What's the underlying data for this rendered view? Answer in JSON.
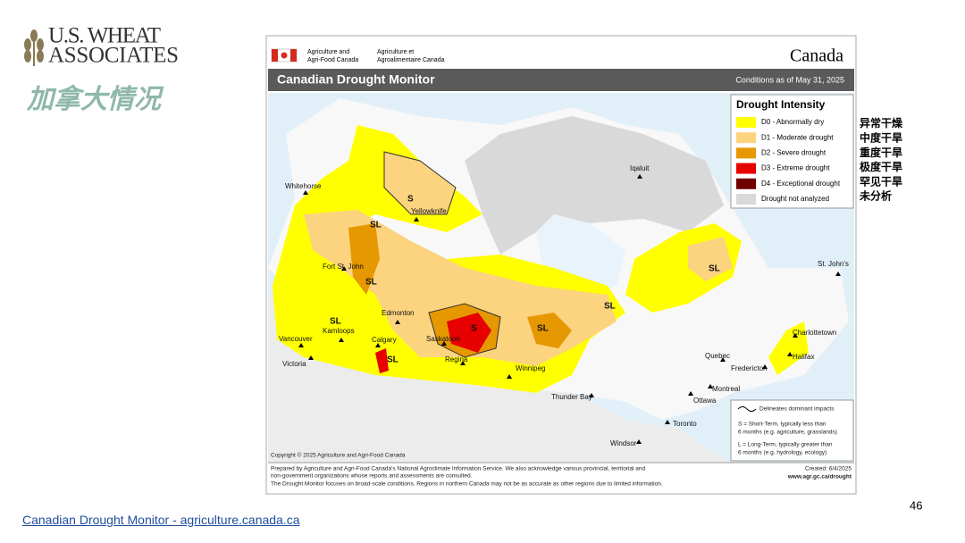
{
  "logo": {
    "line1": "U.S. WHEAT",
    "line2": "ASSOCIATES"
  },
  "slide_title": "加拿大情况",
  "map": {
    "agency_en": [
      "Agriculture and",
      "Agri-Food Canada"
    ],
    "agency_fr": [
      "Agriculture et",
      "Agroalimentaire Canada"
    ],
    "wordmark": "Canada",
    "title": "Canadian Drought Monitor",
    "conditions": "Conditions as of May 31, 2025",
    "legend": {
      "title": "Drought Intensity",
      "items": [
        {
          "label": "D0 - Abnormally dry",
          "color": "#ffff00"
        },
        {
          "label": "D1 - Moderate drought",
          "color": "#fcd37f"
        },
        {
          "label": "D2 - Severe drought",
          "color": "#e69800"
        },
        {
          "label": "D3 - Extreme drought",
          "color": "#e60000"
        },
        {
          "label": "D4 - Exceptional drought",
          "color": "#730000"
        },
        {
          "label": "Drought not analyzed",
          "color": "#d9d9d9"
        }
      ]
    },
    "cities": [
      "Whitehorse",
      "Yellowknife",
      "Iqaluit",
      "Fort St. John",
      "Edmonton",
      "Kamloops",
      "Vancouver",
      "Victoria",
      "Calgary",
      "Saskatoon",
      "Regina",
      "Winnipeg",
      "Thunder Bay",
      "St. John's",
      "Charlottetown",
      "Halifax",
      "Fredericton",
      "Quebec",
      "Montreal",
      "Ottawa",
      "Toronto",
      "Windsor"
    ],
    "impact_labels": [
      "S",
      "SL",
      "SL",
      "SL",
      "SL",
      "S",
      "SL",
      "SL",
      "SL"
    ],
    "impacts_legend": {
      "line": "Delineates dominant impacts",
      "short_term": [
        "S = Short-Term, typically less than",
        "6 months (e.g. agriculture, grasslands)"
      ],
      "long_term": [
        "L = Long-Term, typically greater  than",
        "6 months (e.g. hydrology, ecology)"
      ]
    },
    "copyright": "Copyright © 2025 Agriculture and Agri-Food Canada",
    "footer": [
      "Prepared by Agriculture and Agri-Food Canada's National Agroclimate Information Service.  We also acknowledge various provincial, territorial and",
      "non-government organizations whose reports and assessments are consulted.",
      "The Drought Monitor focuses on broad-scale conditions.  Regions in northern Canada may not be as accurate as other regions due to limited information."
    ],
    "created": "Created: 6/4/2025",
    "website": "www.agr.gc.ca/drought"
  },
  "translations": [
    "异常干燥",
    "中度干旱",
    "重度干旱",
    "极度干旱",
    "罕见干旱",
    "未分析"
  ],
  "page_number": "46",
  "source_link": "Canadian Drought Monitor - agriculture.canada.ca"
}
